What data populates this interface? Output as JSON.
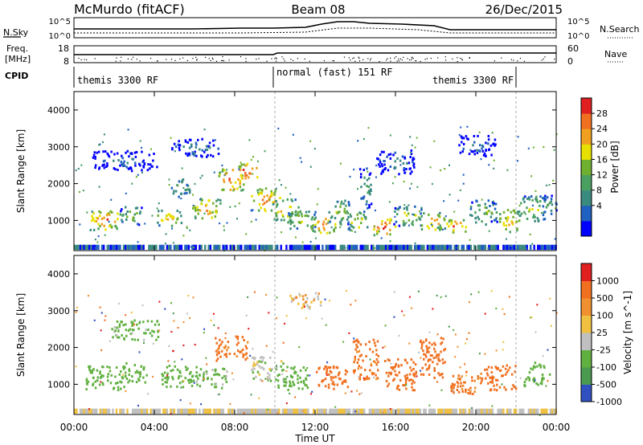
{
  "header": {
    "station": "McMurdo (fitACF)",
    "beam": "Beam 08",
    "date": "26/Dec/2015"
  },
  "side_labels": {
    "nsky": "N.Sky",
    "freq_line1": "Freq.",
    "freq_line2": "[MHz]",
    "cpid": "CPID",
    "nsearch": "N.Search",
    "nave": "Nave"
  },
  "noise_panel": {
    "left_ticks": [
      "10^5",
      "10^0"
    ],
    "right_ticks": [
      "10^5",
      "10^0"
    ]
  },
  "freq_panel": {
    "left_ticks": [
      "18",
      "8"
    ],
    "right_ticks": [
      "60",
      "0"
    ]
  },
  "cpid_panel": {
    "segments": [
      "themis 3300 RF",
      "normal (fast) 151 RF",
      "themis 3300 RF"
    ]
  },
  "time_axis": {
    "label": "Time UT",
    "ticks": [
      "00:00",
      "04:00",
      "08:00",
      "12:00",
      "16:00",
      "20:00",
      "00:00"
    ]
  },
  "chart_data": [
    {
      "type": "heatmap",
      "title": "",
      "xlabel": "Time UT",
      "ylabel": "Slant Range [km]",
      "xlim": [
        0,
        24
      ],
      "ylim": [
        180,
        4500
      ],
      "yticks": [
        1000,
        2000,
        3000,
        4000
      ],
      "colorbar": {
        "label": "Power [dB]",
        "ticks": [
          "28",
          "24",
          "20",
          "16",
          "12",
          "8",
          "4"
        ],
        "colors": [
          "#0000ff",
          "#2060c0",
          "#3a8a80",
          "#4aa060",
          "#70b030",
          "#e8e000",
          "#f0a020",
          "#f07020",
          "#e02020"
        ]
      },
      "blobs": [
        {
          "t": 1.5,
          "r": 1050,
          "w": 0.9,
          "h": 260,
          "v": 26
        },
        {
          "t": 2.8,
          "r": 1150,
          "w": 0.7,
          "h": 220,
          "v": 18
        },
        {
          "t": 4.7,
          "r": 1100,
          "w": 0.8,
          "h": 200,
          "v": 22
        },
        {
          "t": 5.3,
          "r": 1900,
          "w": 0.6,
          "h": 240,
          "v": 16
        },
        {
          "t": 6.6,
          "r": 1350,
          "w": 0.9,
          "h": 260,
          "v": 24
        },
        {
          "t": 7.8,
          "r": 2150,
          "w": 0.8,
          "h": 280,
          "v": 27
        },
        {
          "t": 8.6,
          "r": 2350,
          "w": 0.6,
          "h": 200,
          "v": 29
        },
        {
          "t": 9.5,
          "r": 1600,
          "w": 0.9,
          "h": 280,
          "v": 25
        },
        {
          "t": 10.5,
          "r": 1300,
          "w": 0.8,
          "h": 300,
          "v": 22
        },
        {
          "t": 11.3,
          "r": 1050,
          "w": 0.9,
          "h": 220,
          "v": 20
        },
        {
          "t": 12.4,
          "r": 900,
          "w": 0.8,
          "h": 200,
          "v": 26
        },
        {
          "t": 13.2,
          "r": 1250,
          "w": 0.7,
          "h": 300,
          "v": 18
        },
        {
          "t": 14.1,
          "r": 1000,
          "w": 0.6,
          "h": 250,
          "v": 20
        },
        {
          "t": 14.5,
          "r": 1900,
          "w": 0.4,
          "h": 500,
          "v": 14
        },
        {
          "t": 15.4,
          "r": 850,
          "w": 0.7,
          "h": 200,
          "v": 28
        },
        {
          "t": 16.6,
          "r": 1150,
          "w": 0.9,
          "h": 240,
          "v": 19
        },
        {
          "t": 17.8,
          "r": 1000,
          "w": 0.8,
          "h": 220,
          "v": 24
        },
        {
          "t": 19.0,
          "r": 850,
          "w": 0.6,
          "h": 180,
          "v": 27
        },
        {
          "t": 20.3,
          "r": 1250,
          "w": 0.9,
          "h": 300,
          "v": 17
        },
        {
          "t": 21.6,
          "r": 1000,
          "w": 0.7,
          "h": 300,
          "v": 23
        },
        {
          "t": 22.8,
          "r": 1350,
          "w": 0.8,
          "h": 320,
          "v": 19
        },
        {
          "t": 23.6,
          "r": 1450,
          "w": 0.5,
          "h": 240,
          "v": 14
        },
        {
          "t": 6.0,
          "r": 3000,
          "w": 1.5,
          "h": 220,
          "v": 10
        },
        {
          "t": 2.5,
          "r": 2650,
          "w": 2.0,
          "h": 250,
          "v": 9
        },
        {
          "t": 16.0,
          "r": 2600,
          "w": 1.2,
          "h": 300,
          "v": 10
        },
        {
          "t": 20.0,
          "r": 3050,
          "w": 1.2,
          "h": 250,
          "v": 9
        }
      ]
    },
    {
      "type": "heatmap",
      "title": "",
      "xlabel": "Time UT",
      "ylabel": "Slant Range [km]",
      "xlim": [
        0,
        24
      ],
      "ylim": [
        180,
        4500
      ],
      "yticks": [
        1000,
        2000,
        3000,
        4000
      ],
      "colorbar": {
        "label": "Velocity [m s^-1]",
        "ticks": [
          "1000",
          "500",
          "100",
          "25",
          "-25",
          "-100",
          "-500",
          "-1000"
        ],
        "colors": [
          "#3050c0",
          "#4a9a50",
          "#60b040",
          "#c0c0c0",
          "#f0c040",
          "#f09030",
          "#f07020",
          "#e02020"
        ]
      },
      "blobs": [
        {
          "t": 1.5,
          "r": 1200,
          "w": 1.2,
          "h": 300,
          "v": 300
        },
        {
          "t": 3.0,
          "r": 1350,
          "w": 0.8,
          "h": 260,
          "v": 200
        },
        {
          "t": 5.2,
          "r": 1250,
          "w": 1.1,
          "h": 280,
          "v": 250
        },
        {
          "t": 6.8,
          "r": 1200,
          "w": 1.0,
          "h": 260,
          "v": 150
        },
        {
          "t": 7.8,
          "r": 2000,
          "w": 1.0,
          "h": 300,
          "v": -150
        },
        {
          "t": 9.6,
          "r": 1450,
          "w": 1.0,
          "h": 300,
          "v": 80
        },
        {
          "t": 10.8,
          "r": 1200,
          "w": 1.0,
          "h": 300,
          "v": 300
        },
        {
          "t": 12.8,
          "r": 1200,
          "w": 1.0,
          "h": 300,
          "v": -200
        },
        {
          "t": 14.5,
          "r": 1700,
          "w": 0.8,
          "h": 500,
          "v": -150
        },
        {
          "t": 16.2,
          "r": 1300,
          "w": 1.0,
          "h": 400,
          "v": -250
        },
        {
          "t": 17.8,
          "r": 1750,
          "w": 0.8,
          "h": 500,
          "v": -200
        },
        {
          "t": 19.5,
          "r": 1100,
          "w": 1.0,
          "h": 300,
          "v": -120
        },
        {
          "t": 21.2,
          "r": 1200,
          "w": 1.0,
          "h": 320,
          "v": -180
        },
        {
          "t": 23.0,
          "r": 1300,
          "w": 0.8,
          "h": 300,
          "v": 200
        },
        {
          "t": 11.5,
          "r": 3300,
          "w": 1.0,
          "h": 200,
          "v": 0
        },
        {
          "t": 3.0,
          "r": 2500,
          "w": 1.5,
          "h": 250,
          "v": 150
        }
      ]
    }
  ]
}
